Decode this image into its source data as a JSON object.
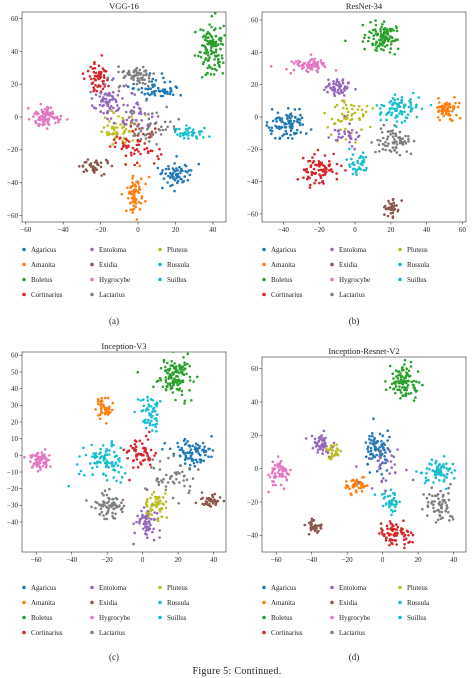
{
  "figure_caption": "Figure 5: Continued.",
  "legend_items": [
    {
      "name": "Agaricus",
      "color": "#1f77b4"
    },
    {
      "name": "Entoloma",
      "color": "#9467bd"
    },
    {
      "name": "Pluteus",
      "color": "#bcbd22"
    },
    {
      "name": "Amanita",
      "color": "#ff7f0e"
    },
    {
      "name": "Exidia",
      "color": "#8c564b"
    },
    {
      "name": "Russula",
      "color": "#17becf"
    },
    {
      "name": "Boletus",
      "color": "#2ca02c"
    },
    {
      "name": "Hygrocybe",
      "color": "#e377c2"
    },
    {
      "name": "Suillus",
      "color": "#17becf"
    },
    {
      "name": "Cortinarius",
      "color": "#d62728"
    },
    {
      "name": "Lactarius",
      "color": "#7f7f7f"
    }
  ],
  "chart_data": [
    {
      "type": "scatter",
      "title": "VGG-16",
      "label": "(a)",
      "xlim": [
        -62,
        47
      ],
      "ylim": [
        -64,
        64
      ],
      "xticks": [
        -60,
        -40,
        -20,
        0,
        20,
        40
      ],
      "yticks": [
        -60,
        -40,
        -20,
        0,
        20,
        40,
        60
      ],
      "clusters": [
        {
          "class": "Boletus",
          "cx": 39,
          "cy": 42,
          "sx": 3,
          "sy": 9,
          "n": 120,
          "seed": 11
        },
        {
          "class": "Hygrocybe",
          "cx": -50,
          "cy": 0,
          "sx": 4,
          "sy": 3,
          "n": 90,
          "seed": 12
        },
        {
          "class": "Cortinarius",
          "cx": -22,
          "cy": 24,
          "sx": 3,
          "sy": 4,
          "n": 60,
          "seed": 13
        },
        {
          "class": "Lactarius",
          "cx": -2,
          "cy": 25,
          "sx": 5,
          "sy": 3,
          "n": 60,
          "seed": 14
        },
        {
          "class": "Entoloma",
          "cx": -18,
          "cy": 10,
          "sx": 4,
          "sy": 5,
          "n": 60,
          "seed": 15
        },
        {
          "class": "Agaricus",
          "cx": 10,
          "cy": 16,
          "sx": 6,
          "sy": 4,
          "n": 60,
          "seed": 16
        },
        {
          "class": "Russula",
          "cx": 28,
          "cy": -10,
          "sx": 4,
          "sy": 2,
          "n": 40,
          "seed": 17
        },
        {
          "class": "Pluteus",
          "cx": -10,
          "cy": -8,
          "sx": 5,
          "sy": 5,
          "n": 55,
          "seed": 18
        },
        {
          "class": "Agaricus",
          "cx": 20,
          "cy": -35,
          "sx": 5,
          "sy": 4,
          "n": 60,
          "seed": 19
        },
        {
          "class": "Amanita",
          "cx": -2,
          "cy": -45,
          "sx": 2,
          "sy": 7,
          "n": 70,
          "seed": 20
        },
        {
          "class": "Exidia",
          "cx": -24,
          "cy": -30,
          "sx": 4,
          "sy": 2,
          "n": 40,
          "seed": 21
        },
        {
          "class": "Cortinarius",
          "cx": -2,
          "cy": -18,
          "sx": 7,
          "sy": 6,
          "n": 60,
          "seed": 22
        },
        {
          "class": "Lactarius",
          "cx": 8,
          "cy": -5,
          "sx": 7,
          "sy": 6,
          "n": 50,
          "seed": 23
        },
        {
          "class": "Entoloma",
          "cx": -2,
          "cy": 2,
          "sx": 6,
          "sy": 5,
          "n": 40,
          "seed": 24
        }
      ]
    },
    {
      "type": "scatter",
      "title": "ResNet-34",
      "label": "(b)",
      "xlim": [
        -52,
        62
      ],
      "ylim": [
        -65,
        65
      ],
      "xticks": [
        -40,
        -20,
        0,
        20,
        40,
        60
      ],
      "yticks": [
        -60,
        -40,
        -20,
        0,
        20,
        40,
        60
      ],
      "clusters": [
        {
          "class": "Boletus",
          "cx": 15,
          "cy": 49,
          "sx": 5,
          "sy": 4,
          "n": 110,
          "seed": 31
        },
        {
          "class": "Hygrocybe",
          "cx": -25,
          "cy": 32,
          "sx": 5,
          "sy": 2,
          "n": 70,
          "seed": 32
        },
        {
          "class": "Entoloma",
          "cx": -10,
          "cy": 18,
          "sx": 4,
          "sy": 3,
          "n": 50,
          "seed": 33
        },
        {
          "class": "Agaricus",
          "cx": -38,
          "cy": -5,
          "sx": 5,
          "sy": 4,
          "n": 90,
          "seed": 34
        },
        {
          "class": "Suillus",
          "cx": 25,
          "cy": 5,
          "sx": 6,
          "sy": 4,
          "n": 80,
          "seed": 35
        },
        {
          "class": "Amanita",
          "cx": 52,
          "cy": 5,
          "sx": 4,
          "sy": 3,
          "n": 60,
          "seed": 36
        },
        {
          "class": "Lactarius",
          "cx": 22,
          "cy": -15,
          "sx": 5,
          "sy": 4,
          "n": 70,
          "seed": 37
        },
        {
          "class": "Cortinarius",
          "cx": -20,
          "cy": -33,
          "sx": 5,
          "sy": 4,
          "n": 80,
          "seed": 38
        },
        {
          "class": "Exidia",
          "cx": 20,
          "cy": -56,
          "sx": 2,
          "sy": 3,
          "n": 35,
          "seed": 39
        },
        {
          "class": "Pluteus",
          "cx": -5,
          "cy": 0,
          "sx": 5,
          "sy": 6,
          "n": 55,
          "seed": 40
        },
        {
          "class": "Russula",
          "cx": 2,
          "cy": -28,
          "sx": 3,
          "sy": 4,
          "n": 40,
          "seed": 41
        },
        {
          "class": "Entoloma",
          "cx": -5,
          "cy": -10,
          "sx": 4,
          "sy": 4,
          "n": 30,
          "seed": 42
        }
      ]
    },
    {
      "type": "scatter",
      "title": "Inception-V3",
      "label": "(c)",
      "xlim": [
        -68,
        47
      ],
      "ylim": [
        -58,
        62
      ],
      "xticks": [
        -60,
        -40,
        -20,
        0,
        20,
        40
      ],
      "yticks": [
        -40,
        -30,
        -20,
        -10,
        0,
        10,
        20,
        30,
        40,
        50,
        60
      ],
      "clusters": [
        {
          "class": "Boletus",
          "cx": 18,
          "cy": 47,
          "sx": 5,
          "sy": 6,
          "n": 120,
          "seed": 51
        },
        {
          "class": "Amanita",
          "cx": -22,
          "cy": 28,
          "sx": 2,
          "sy": 3,
          "n": 50,
          "seed": 52
        },
        {
          "class": "Russula",
          "cx": 5,
          "cy": 25,
          "sx": 3,
          "sy": 5,
          "n": 60,
          "seed": 53
        },
        {
          "class": "Hygrocybe",
          "cx": -58,
          "cy": -3,
          "sx": 3,
          "sy": 3,
          "n": 70,
          "seed": 54
        },
        {
          "class": "Suillus",
          "cx": -20,
          "cy": -5,
          "sx": 6,
          "sy": 6,
          "n": 90,
          "seed": 55
        },
        {
          "class": "Cortinarius",
          "cx": -2,
          "cy": 2,
          "sx": 4,
          "sy": 5,
          "n": 60,
          "seed": 56
        },
        {
          "class": "Agaricus",
          "cx": 28,
          "cy": 2,
          "sx": 6,
          "sy": 4,
          "n": 80,
          "seed": 57
        },
        {
          "class": "Lactarius",
          "cx": -20,
          "cy": -30,
          "sx": 5,
          "sy": 4,
          "n": 70,
          "seed": 58
        },
        {
          "class": "Exidia",
          "cx": 38,
          "cy": -27,
          "sx": 3,
          "sy": 2,
          "n": 40,
          "seed": 59
        },
        {
          "class": "Entoloma",
          "cx": 2,
          "cy": -40,
          "sx": 4,
          "sy": 4,
          "n": 60,
          "seed": 60
        },
        {
          "class": "Pluteus",
          "cx": 8,
          "cy": -30,
          "sx": 4,
          "sy": 4,
          "n": 50,
          "seed": 61
        },
        {
          "class": "Lactarius",
          "cx": 15,
          "cy": -15,
          "sx": 7,
          "sy": 6,
          "n": 50,
          "seed": 62
        }
      ]
    },
    {
      "type": "scatter",
      "title": "Inception-Resnet-V2",
      "label": "(d)",
      "xlim": [
        -68,
        47
      ],
      "ylim": [
        -50,
        67
      ],
      "xticks": [
        -60,
        -40,
        -20,
        0,
        20,
        40
      ],
      "yticks": [
        -40,
        -20,
        0,
        20,
        40,
        60
      ],
      "clusters": [
        {
          "class": "Boletus",
          "cx": 12,
          "cy": 52,
          "sx": 4,
          "sy": 5,
          "n": 100,
          "seed": 71
        },
        {
          "class": "Entoloma",
          "cx": -35,
          "cy": 15,
          "sx": 3,
          "sy": 3,
          "n": 50,
          "seed": 72
        },
        {
          "class": "Pluteus",
          "cx": -28,
          "cy": 10,
          "sx": 2,
          "sy": 3,
          "n": 30,
          "seed": 73
        },
        {
          "class": "Hygrocybe",
          "cx": -58,
          "cy": -2,
          "sx": 3,
          "sy": 4,
          "n": 60,
          "seed": 74
        },
        {
          "class": "Agaricus",
          "cx": -3,
          "cy": 12,
          "sx": 4,
          "sy": 6,
          "n": 80,
          "seed": 75
        },
        {
          "class": "Amanita",
          "cx": -15,
          "cy": -10,
          "sx": 3,
          "sy": 2,
          "n": 45,
          "seed": 76
        },
        {
          "class": "Suillus",
          "cx": 32,
          "cy": -2,
          "sx": 4,
          "sy": 4,
          "n": 70,
          "seed": 77
        },
        {
          "class": "Russula",
          "cx": 5,
          "cy": -20,
          "sx": 3,
          "sy": 3,
          "n": 40,
          "seed": 78
        },
        {
          "class": "Lactarius",
          "cx": 32,
          "cy": -22,
          "sx": 4,
          "sy": 5,
          "n": 60,
          "seed": 79
        },
        {
          "class": "Exidia",
          "cx": -38,
          "cy": -35,
          "sx": 2,
          "sy": 2,
          "n": 35,
          "seed": 80
        },
        {
          "class": "Cortinarius",
          "cx": 7,
          "cy": -40,
          "sx": 4,
          "sy": 4,
          "n": 70,
          "seed": 81
        },
        {
          "class": "Entoloma",
          "cx": 0,
          "cy": 0,
          "sx": 6,
          "sy": 6,
          "n": 30,
          "seed": 82
        }
      ]
    }
  ]
}
